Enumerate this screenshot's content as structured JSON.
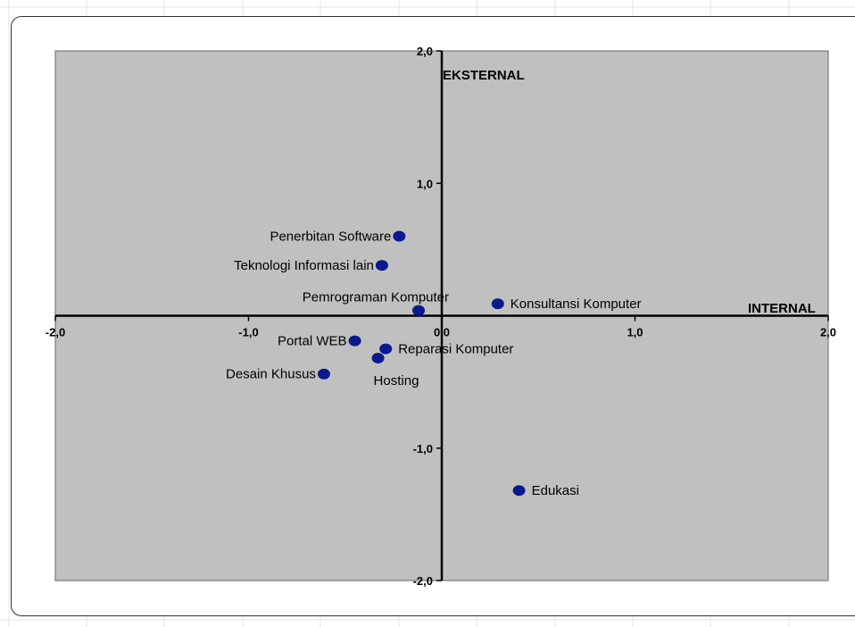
{
  "chart_data": {
    "type": "scatter",
    "x_axis_title": "INTERNAL",
    "y_axis_title": "EKSTERNAL",
    "xlim": [
      -2.0,
      2.0
    ],
    "ylim": [
      -2.0,
      2.0
    ],
    "x_ticks": [
      "-2,0",
      "-1,0",
      "0,0",
      "1,0",
      "2,0"
    ],
    "y_ticks": [
      "2,0",
      "1,0",
      "0,0",
      "-1,0",
      "-2,0"
    ],
    "grid": false,
    "plot_background": "#c0c0c0",
    "marker_color": "#0a1a8c",
    "points": [
      {
        "label": "Penerbitan Software",
        "x": -0.22,
        "y": 0.6,
        "label_side": "left"
      },
      {
        "label": "Teknologi Informasi lain",
        "x": -0.31,
        "y": 0.38,
        "label_side": "left"
      },
      {
        "label": "Pemrograman Komputer",
        "x": -0.12,
        "y": 0.04,
        "label_side": "above-left"
      },
      {
        "label": "Konsultansi Komputer",
        "x": 0.29,
        "y": 0.09,
        "label_side": "right"
      },
      {
        "label": "Portal WEB",
        "x": -0.45,
        "y": -0.19,
        "label_side": "left"
      },
      {
        "label": "Reparasi Komputer",
        "x": -0.29,
        "y": -0.25,
        "label_side": "right"
      },
      {
        "label": "Hosting",
        "x": -0.33,
        "y": -0.32,
        "label_side": "below"
      },
      {
        "label": "Desain Khusus",
        "x": -0.61,
        "y": -0.44,
        "label_side": "left"
      },
      {
        "label": "Edukasi",
        "x": 0.4,
        "y": -1.32,
        "label_side": "right"
      }
    ]
  }
}
